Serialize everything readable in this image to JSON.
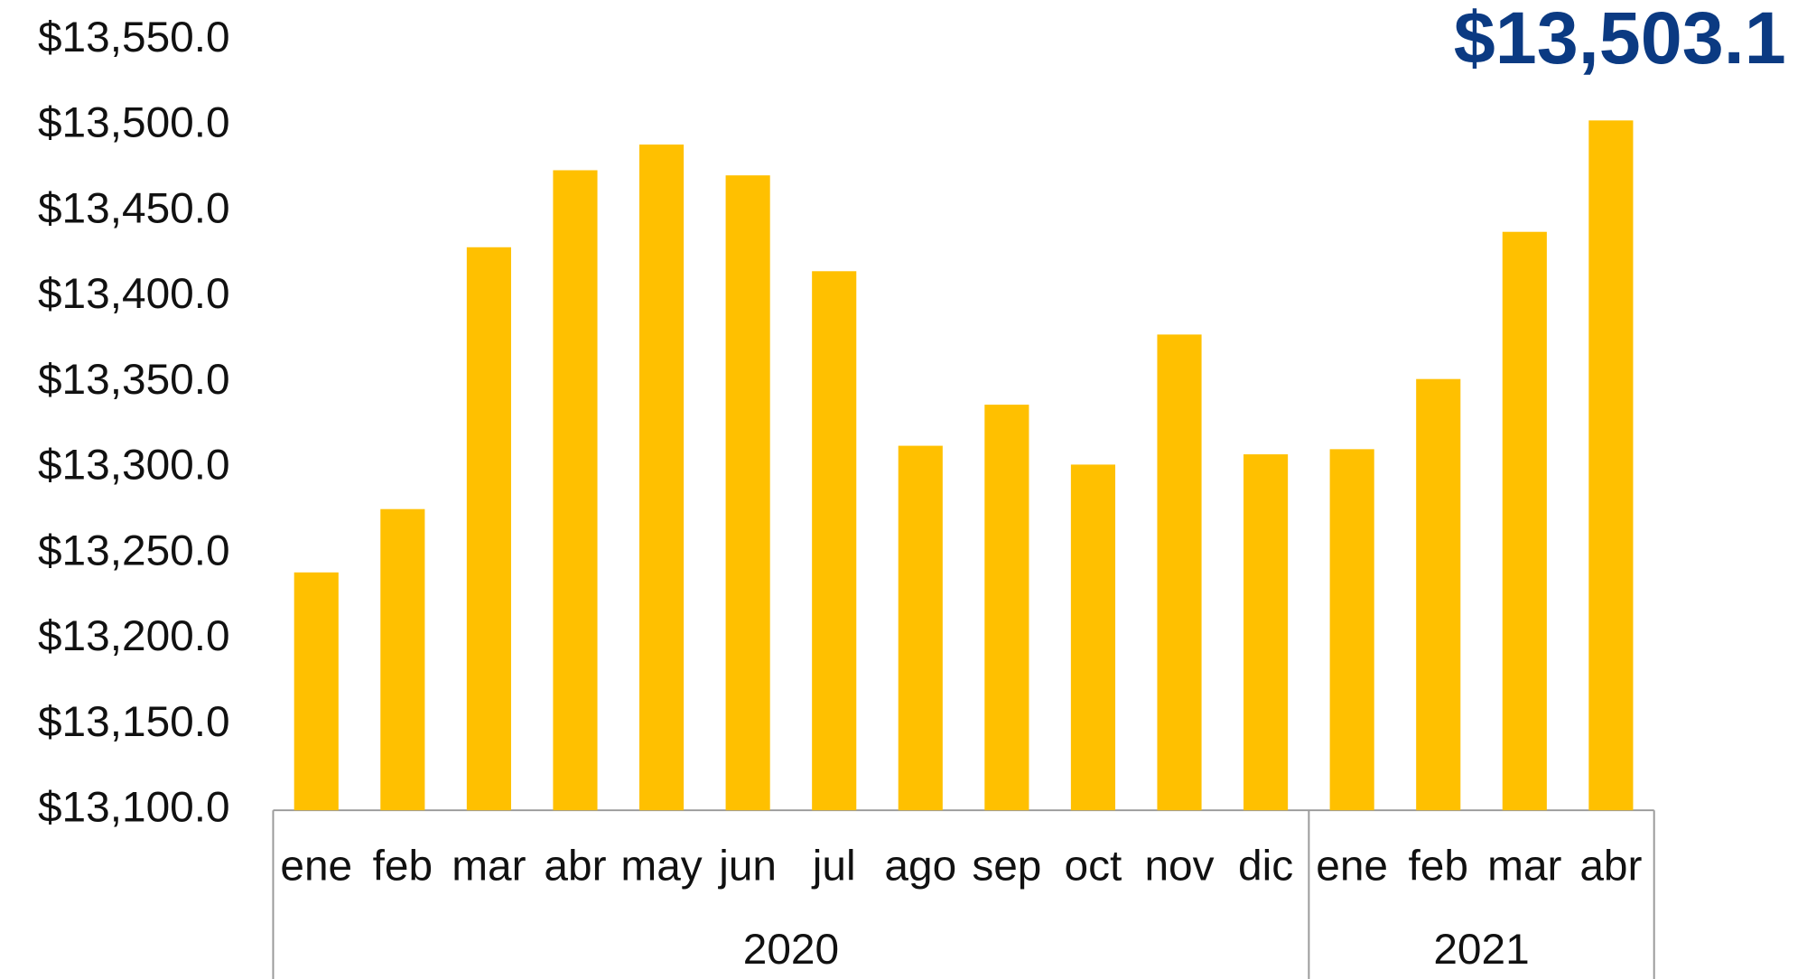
{
  "chart_data": {
    "type": "bar",
    "annotation": "$13,503.1",
    "groups": [
      {
        "label": "2020",
        "categories": [
          "ene",
          "feb",
          "mar",
          "abr",
          "may",
          "jun",
          "jul",
          "ago",
          "sep",
          "oct",
          "nov",
          "dic"
        ]
      },
      {
        "label": "2021",
        "categories": [
          "ene",
          "feb",
          "mar",
          "abr"
        ]
      }
    ],
    "values": [
      13239,
      13276,
      13429,
      13474,
      13489,
      13471,
      13415,
      13313,
      13337,
      13302,
      13378,
      13308,
      13311,
      13352,
      13438,
      13503.1
    ],
    "color": "#ffc000",
    "ylim": [
      13100,
      13550
    ],
    "yticks": [
      {
        "value": 13100,
        "label": "$13,100.0"
      },
      {
        "value": 13150,
        "label": "$13,150.0"
      },
      {
        "value": 13200,
        "label": "$13,200.0"
      },
      {
        "value": 13250,
        "label": "$13,250.0"
      },
      {
        "value": 13300,
        "label": "$13,300.0"
      },
      {
        "value": 13350,
        "label": "$13,350.0"
      },
      {
        "value": 13400,
        "label": "$13,400.0"
      },
      {
        "value": 13450,
        "label": "$13,450.0"
      },
      {
        "value": 13500,
        "label": "$13,500.0"
      },
      {
        "value": 13550,
        "label": "$13,550.0"
      }
    ],
    "grid": false
  }
}
